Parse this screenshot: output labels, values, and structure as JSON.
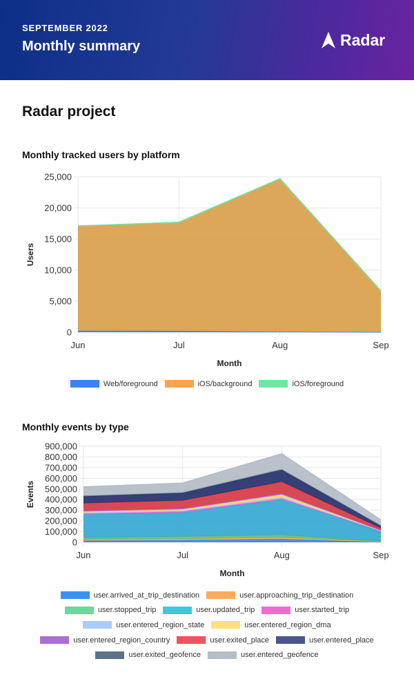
{
  "header": {
    "eyebrow": "SEPTEMBER 2022",
    "title": "Monthly summary",
    "brand": "Radar",
    "gradient": [
      "#0d2f86",
      "#6a22a0"
    ]
  },
  "project": {
    "title": "Radar project"
  },
  "chart_data": [
    {
      "type": "area",
      "stacked": true,
      "title": "Monthly tracked users by platform",
      "xlabel": "Month",
      "ylabel": "Users",
      "categories": [
        "Jun",
        "Jul",
        "Aug",
        "Sep"
      ],
      "ylim": [
        0,
        25000
      ],
      "yticks": [
        0,
        5000,
        10000,
        15000,
        20000,
        25000
      ],
      "ytick_labels": [
        "0",
        "5,000",
        "10,000",
        "15,000",
        "20,000",
        "25,000"
      ],
      "grid": true,
      "legend_position": "bottom",
      "series": [
        {
          "name": "Web/foreground",
          "color": "#3b82f6",
          "fill": "#3b82f6",
          "values": [
            250,
            220,
            80,
            30
          ]
        },
        {
          "name": "iOS/background",
          "color": "#ffa24d",
          "fill": "#d9a04b",
          "values": [
            16850,
            17480,
            24620,
            6620
          ]
        },
        {
          "name": "iOS/foreground",
          "color": "#6ee7a0",
          "fill": "#6ee7a0",
          "values": [
            0,
            0,
            0,
            0
          ]
        }
      ]
    },
    {
      "type": "area",
      "stacked": true,
      "title": "Monthly events by type",
      "xlabel": "Month",
      "ylabel": "Events",
      "categories": [
        "Jun",
        "Jul",
        "Aug",
        "Sep"
      ],
      "ylim": [
        0,
        900000
      ],
      "yticks": [
        0,
        100000,
        200000,
        300000,
        400000,
        500000,
        600000,
        700000,
        800000,
        900000
      ],
      "ytick_labels": [
        "0",
        "100,000",
        "200,000",
        "300,000",
        "400,000",
        "500,000",
        "600,000",
        "700,000",
        "800,000",
        "900,000"
      ],
      "grid": true,
      "legend_position": "bottom",
      "series": [
        {
          "name": "user.arrived_at_trip_destination",
          "color": "#3b91f7",
          "fill": "#3b82f6",
          "values": [
            15000,
            20000,
            30000,
            3000
          ]
        },
        {
          "name": "user.approaching_trip_destination",
          "color": "#ffa95c",
          "fill": "#e8a84e",
          "values": [
            10000,
            12000,
            15000,
            3000
          ]
        },
        {
          "name": "user.stopped_trip",
          "color": "#6fd79a",
          "fill": "#5dbf7d",
          "values": [
            20000,
            22000,
            25000,
            4000
          ]
        },
        {
          "name": "user.updated_trip",
          "color": "#3cc9dd",
          "fill": "#35a8d2",
          "values": [
            215000,
            226000,
            330000,
            95000
          ]
        },
        {
          "name": "user.started_trip",
          "color": "#ef6bd2",
          "fill": "#e56bd0",
          "values": [
            10000,
            10000,
            12000,
            3000
          ]
        },
        {
          "name": "user.entered_region_state",
          "color": "#a9ccfb",
          "fill": "#a9ccfb",
          "values": [
            8000,
            8000,
            10000,
            2000
          ]
        },
        {
          "name": "user.entered_region_dma",
          "color": "#ffe07a",
          "fill": "#f0d27a",
          "values": [
            10000,
            11000,
            25000,
            2000
          ]
        },
        {
          "name": "user.entered_region_country",
          "color": "#ab6dd8",
          "fill": "#ab6dd8",
          "values": [
            8000,
            8000,
            10000,
            2000
          ]
        },
        {
          "name": "user.exited_place",
          "color": "#f0535e",
          "fill": "#d63a47",
          "values": [
            70000,
            75000,
            110000,
            18000
          ]
        },
        {
          "name": "user.entered_place",
          "color": "#4a5690",
          "fill": "#25306b",
          "values": [
            65000,
            70000,
            110000,
            25000
          ]
        },
        {
          "name": "user.exited_geofence",
          "color": "#5c7286",
          "fill": "#5c7286",
          "values": [
            5000,
            5000,
            8000,
            1000
          ]
        },
        {
          "name": "user.entered_geofence",
          "color": "#b6bec7",
          "fill": "#b3bcc5",
          "values": [
            84000,
            88000,
            145000,
            52000
          ]
        }
      ]
    }
  ]
}
